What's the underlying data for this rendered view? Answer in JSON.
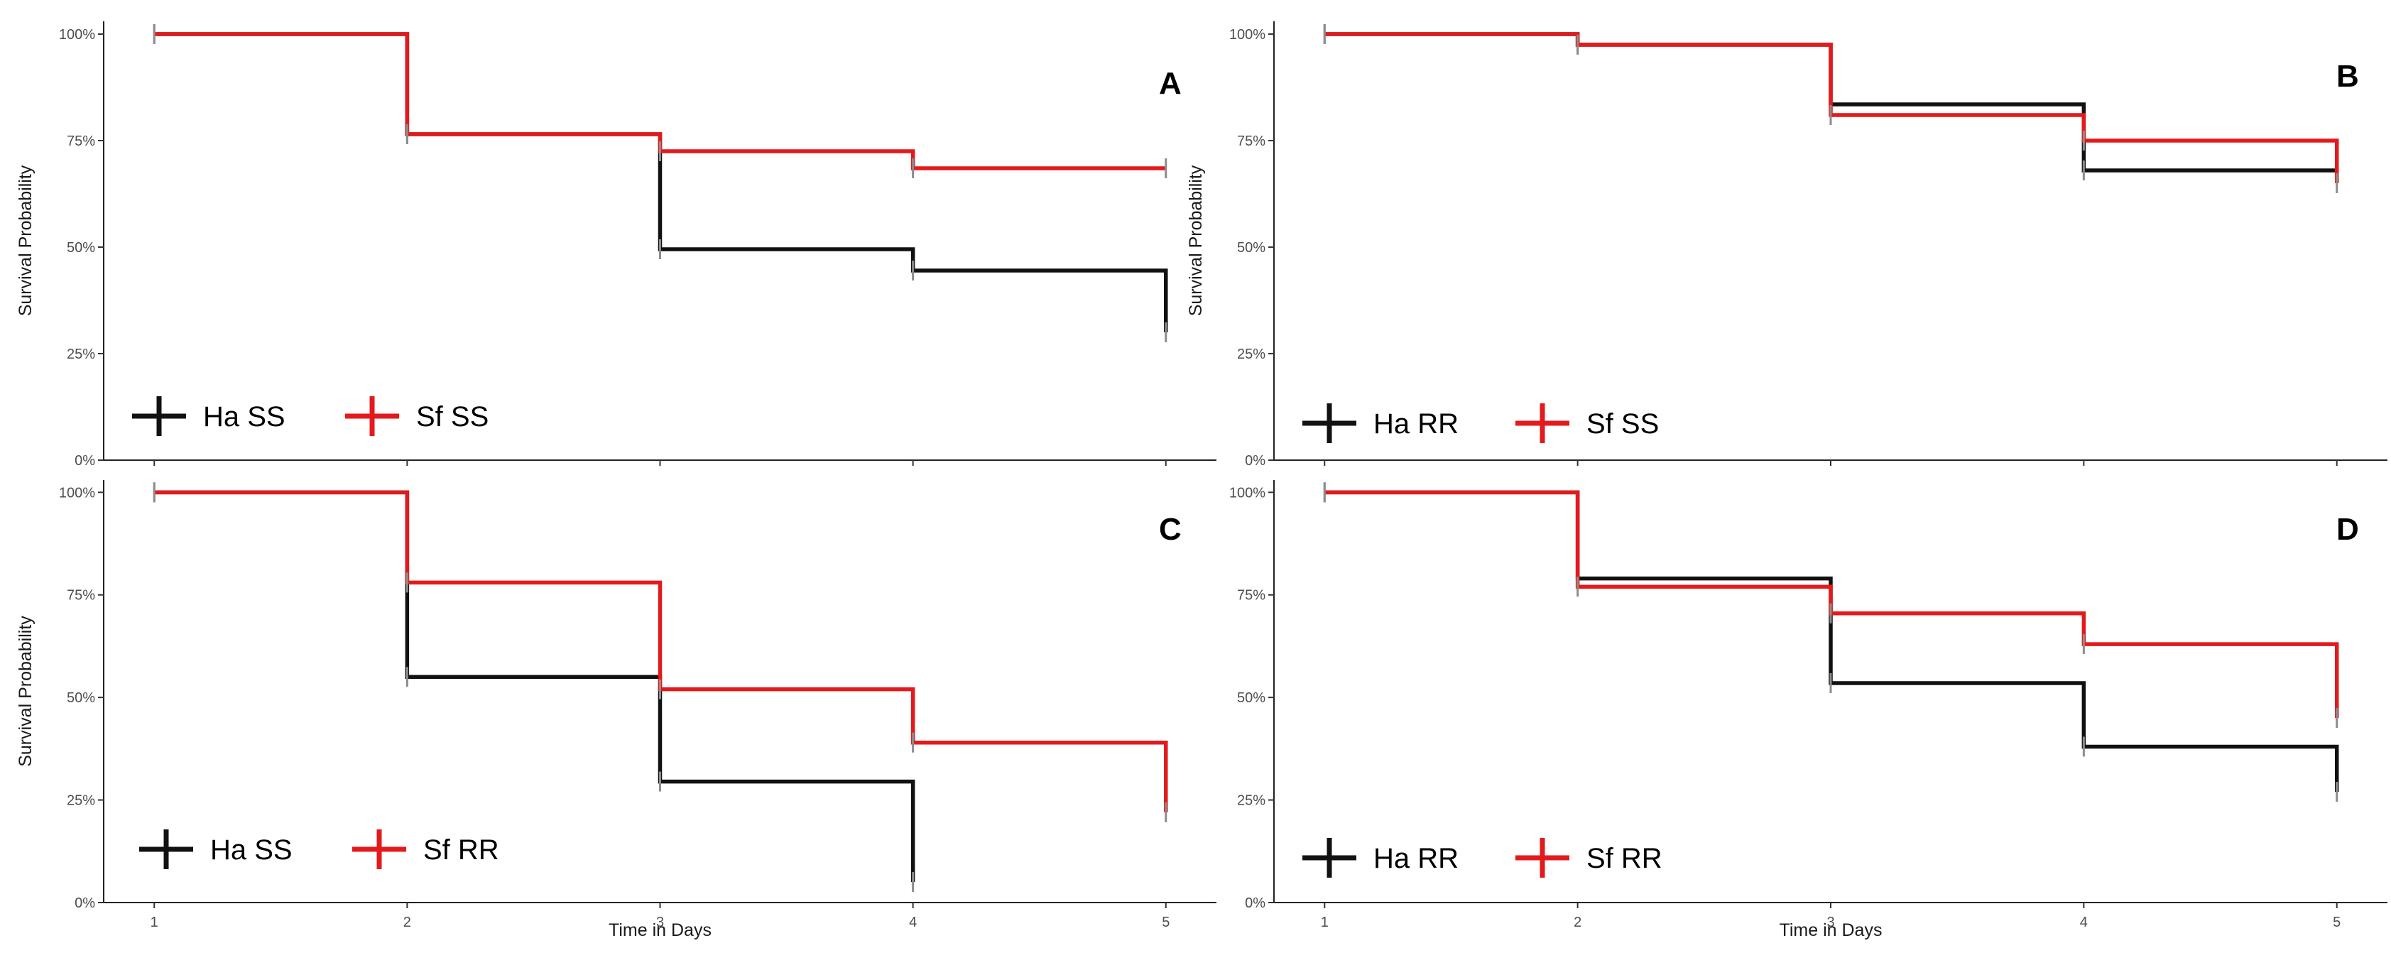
{
  "colors": {
    "Ha": "#111111",
    "Sf": "#e31a1c",
    "censor": "#8c8c8c"
  },
  "chart_data": [
    {
      "panel": "A",
      "type": "line",
      "step": "post",
      "title": "",
      "xlabel": "",
      "ylabel": "Survival Probability",
      "xlim": [
        0.8,
        5.2
      ],
      "ylim": [
        0,
        1.03
      ],
      "x_ticks": [
        "1",
        "2",
        "3",
        "4",
        "5"
      ],
      "y_ticks": [
        "0%",
        "25%",
        "50%",
        "75%",
        "100%"
      ],
      "show_x_ticklabels": false,
      "series": [
        {
          "name": "Ha SS",
          "color_key": "Ha",
          "x": [
            1,
            2,
            3,
            4,
            5
          ],
          "y": [
            1.0,
            0.765,
            0.495,
            0.445,
            0.3
          ],
          "censor_x": [
            1,
            2,
            3,
            4,
            5
          ]
        },
        {
          "name": "Sf SS",
          "color_key": "Sf",
          "x": [
            1,
            2,
            3,
            4,
            5
          ],
          "y": [
            1.0,
            0.765,
            0.725,
            0.685,
            0.685
          ],
          "censor_x": [
            1,
            2,
            3,
            4,
            5
          ]
        }
      ],
      "legend": [
        "Ha SS",
        "Sf SS"
      ]
    },
    {
      "panel": "B",
      "type": "line",
      "step": "post",
      "title": "",
      "xlabel": "",
      "ylabel": "Survival Probability",
      "xlim": [
        0.8,
        5.2
      ],
      "ylim": [
        0,
        1.03
      ],
      "x_ticks": [
        "1",
        "2",
        "3",
        "4",
        "5"
      ],
      "y_ticks": [
        "0%",
        "25%",
        "50%",
        "75%",
        "100%"
      ],
      "show_x_ticklabels": false,
      "series": [
        {
          "name": "Ha RR",
          "color_key": "Ha",
          "x": [
            1,
            2,
            3,
            4,
            5
          ],
          "y": [
            1.0,
            0.975,
            0.835,
            0.68,
            0.68
          ],
          "censor_x": [
            1,
            2,
            3,
            4,
            5
          ]
        },
        {
          "name": "Sf SS",
          "color_key": "Sf",
          "x": [
            1,
            2,
            3,
            4,
            5
          ],
          "y": [
            1.0,
            0.975,
            0.81,
            0.75,
            0.65
          ],
          "censor_x": [
            1,
            2,
            3,
            4,
            5
          ]
        }
      ],
      "legend": [
        "Ha RR",
        "Sf SS"
      ]
    },
    {
      "panel": "C",
      "type": "line",
      "step": "post",
      "title": "",
      "xlabel": "Time in Days",
      "ylabel": "Survival Probability",
      "xlim": [
        0.8,
        5.2
      ],
      "ylim": [
        0,
        1.03
      ],
      "x_ticks": [
        "1",
        "2",
        "3",
        "4",
        "5"
      ],
      "y_ticks": [
        "0%",
        "25%",
        "50%",
        "75%",
        "100%"
      ],
      "show_x_ticklabels": true,
      "series": [
        {
          "name": "Ha SS",
          "color_key": "Ha",
          "x": [
            1,
            2,
            3,
            4
          ],
          "y": [
            1.0,
            0.55,
            0.295,
            0.05
          ],
          "censor_x": [
            1,
            2,
            3,
            4
          ]
        },
        {
          "name": "Sf RR",
          "color_key": "Sf",
          "x": [
            1,
            2,
            3,
            4,
            5
          ],
          "y": [
            1.0,
            0.78,
            0.52,
            0.39,
            0.22
          ],
          "censor_x": [
            1,
            2,
            3,
            4,
            5
          ]
        }
      ],
      "legend": [
        "Ha SS",
        "Sf RR"
      ]
    },
    {
      "panel": "D",
      "type": "line",
      "step": "post",
      "title": "",
      "xlabel": "Time in Days",
      "ylabel": "",
      "xlim": [
        0.8,
        5.2
      ],
      "ylim": [
        0,
        1.03
      ],
      "x_ticks": [
        "1",
        "2",
        "3",
        "4",
        "5"
      ],
      "y_ticks": [
        "0%",
        "25%",
        "50%",
        "75%",
        "100%"
      ],
      "show_x_ticklabels": true,
      "series": [
        {
          "name": "Ha RR",
          "color_key": "Ha",
          "x": [
            1,
            2,
            3,
            4,
            5
          ],
          "y": [
            1.0,
            0.79,
            0.535,
            0.38,
            0.27
          ],
          "censor_x": [
            1,
            2,
            3,
            4,
            5
          ]
        },
        {
          "name": "Sf RR",
          "color_key": "Sf",
          "x": [
            1,
            2,
            3,
            4,
            5
          ],
          "y": [
            1.0,
            0.77,
            0.705,
            0.63,
            0.45
          ],
          "censor_x": [
            1,
            2,
            3,
            4,
            5
          ]
        }
      ],
      "legend": [
        "Ha RR",
        "Sf RR"
      ]
    }
  ]
}
